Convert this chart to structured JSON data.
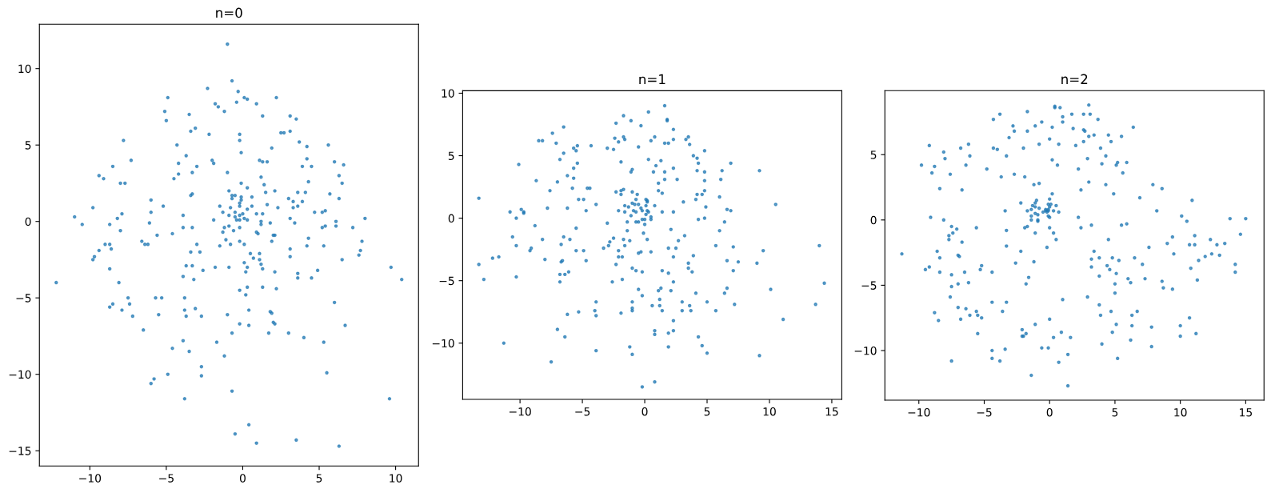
{
  "chart_data": [
    {
      "type": "scatter",
      "title": "n=0",
      "color": "#1f77b4",
      "marker": "circle",
      "x": [
        -1.0,
        -0.7,
        -2.3,
        -0.3,
        -4.9,
        0.1,
        0.3,
        2.2,
        -1.8,
        -0.4,
        0.9,
        -1.6,
        -1.2,
        -5.1,
        -5.0,
        -3.5,
        1.3,
        3.1,
        3.5,
        -3.1,
        -3.4,
        -2.2,
        -0.2,
        -0.2,
        2.5,
        2.7,
        3.1,
        -7.8,
        -4.3,
        3.7,
        4.2,
        5.6,
        1.9,
        -0.1,
        -3.7,
        -7.3,
        -2.0,
        1.1,
        1.3,
        1.6,
        4.2,
        6.0,
        6.6,
        -4.2,
        -1.9,
        -8.5,
        -3.0,
        3.9,
        4.5,
        -1.0,
        -3.3,
        -4.2,
        -9.4,
        -9.1,
        -4.5,
        1.2,
        6.3,
        -8.0,
        -7.7,
        -0.1,
        1.4,
        4.3,
        6.5,
        0.3,
        -0.9,
        1.5,
        2.1,
        3.6,
        4.1,
        5.7,
        -0.7,
        -0.5,
        -3.3,
        -3.4,
        -0.1,
        0.6,
        -0.7,
        -0.1,
        -6.0,
        3.0,
        3.3,
        3.9,
        6.3,
        -0.2,
        1.6,
        -1.5,
        -0.2,
        0.6,
        -5.2,
        3.6,
        2.3,
        -0.8,
        0.3,
        3.3,
        -9.8,
        -0.5,
        -1.3,
        -6.0,
        4.7,
        5.2,
        5.4,
        -7.9,
        -3.9,
        -0.9,
        0.0,
        0.9,
        1.3,
        -0.5,
        -0.2,
        0.1,
        -0.4,
        -0.2,
        0.3,
        -1.9,
        3.1,
        8.0,
        -11.0,
        -8.2,
        1.2,
        6.1,
        -10.5,
        -6.1,
        1.2,
        1.8,
        3.4,
        -8.7,
        5.4,
        6.1,
        5.2,
        7.2,
        -3.9,
        -3.3,
        -1.2,
        -0.9,
        -0.2,
        -8.0,
        -1.3,
        -0.6,
        0.9,
        1.0,
        -4.6,
        -5.6,
        2.0,
        2.1,
        -1.1,
        4.3,
        1.9,
        -0.2,
        7.8,
        -6.6,
        -9.0,
        -8.7,
        -6.4,
        -6.2,
        -3.0,
        -0.8,
        0.1,
        -1.5,
        4.2,
        5.3,
        3.1,
        -9.4,
        -8.6,
        7.7,
        -3.4,
        -2.8,
        0.5,
        1.1,
        7.6,
        -9.7,
        -9.8,
        0.7,
        3.1,
        1.1,
        6.5,
        0.1,
        1.2,
        -3.7,
        -3.3,
        -1.8,
        -0.9,
        0.3,
        9.7,
        -8.7,
        -2.6,
        1.3,
        4.9,
        0.2,
        2.1,
        3.6,
        -3.9,
        3.6,
        4.5,
        -3.2,
        10.4,
        -12.2,
        -8.1,
        1.3,
        0.3,
        2.2,
        -0.2,
        0.2,
        -7.5,
        -5.7,
        -5.3,
        -3.8,
        6.0,
        -8.5,
        -7.4,
        -8.7,
        -3.1,
        -7.9,
        -3.8,
        0.4,
        1.8,
        1.9,
        -1.0,
        -5.5,
        -7.2,
        -3.7,
        -2.7,
        2.0,
        2.1,
        -0.2,
        0.4,
        6.7,
        -6.5,
        -0.7,
        1.7,
        3.0,
        4.0,
        -3.9,
        -1.7,
        5.3,
        -4.6,
        -3.5,
        -1.2,
        -2.7,
        -4.9,
        -2.7,
        5.5,
        -5.8,
        -6.0,
        -0.7,
        -3.8,
        9.6,
        0.4,
        -0.5,
        0.9,
        3.5,
        6.3
      ],
      "values": [
        11.6,
        9.2,
        8.7,
        8.5,
        8.1,
        8.1,
        8.0,
        8.1,
        7.7,
        7.8,
        7.7,
        7.5,
        7.2,
        7.2,
        6.6,
        7.0,
        6.9,
        6.9,
        6.7,
        6.1,
        5.9,
        5.7,
        5.7,
        5.3,
        5.8,
        5.8,
        5.9,
        5.3,
        5.0,
        5.2,
        4.9,
        5.0,
        4.8,
        4.5,
        4.3,
        4.0,
        4.0,
        4.0,
        3.9,
        3.9,
        4.1,
        3.9,
        3.7,
        3.8,
        3.8,
        3.6,
        3.6,
        3.6,
        3.6,
        3.2,
        3.2,
        3.1,
        3.0,
        2.8,
        2.8,
        2.9,
        3.0,
        2.5,
        2.5,
        2.5,
        2.4,
        2.6,
        2.5,
        2.2,
        2.0,
        1.9,
        2.0,
        1.9,
        1.9,
        1.8,
        1.7,
        1.7,
        1.8,
        1.7,
        1.6,
        1.6,
        1.5,
        1.4,
        1.4,
        1.5,
        1.3,
        1.3,
        1.5,
        1.2,
        1.1,
        1.0,
        1.0,
        1.0,
        1.0,
        1.0,
        0.9,
        0.9,
        0.8,
        0.9,
        0.9,
        0.6,
        0.6,
        0.6,
        0.6,
        0.6,
        0.7,
        0.5,
        0.4,
        0.4,
        0.5,
        0.5,
        0.5,
        0.3,
        0.4,
        0.2,
        0.1,
        0.1,
        0.1,
        0.1,
        0.2,
        0.2,
        0.3,
        0.2,
        0.0,
        0.0,
        -0.2,
        -0.1,
        -0.2,
        -0.1,
        -0.1,
        -0.2,
        -0.3,
        -0.3,
        -0.4,
        -0.4,
        -0.4,
        -0.4,
        -0.4,
        -0.3,
        -0.4,
        -0.6,
        -0.7,
        -0.6,
        -0.7,
        -0.8,
        -0.8,
        -0.9,
        -0.9,
        -0.9,
        -1.2,
        -1.1,
        -1.3,
        -1.3,
        -1.3,
        -1.3,
        -1.5,
        -1.5,
        -1.5,
        -1.5,
        -1.5,
        -1.5,
        -1.5,
        -1.6,
        -1.6,
        -1.6,
        -1.8,
        -1.9,
        -1.8,
        -1.9,
        -2.0,
        -2.0,
        -2.1,
        -2.1,
        -2.2,
        -2.3,
        -2.5,
        -2.4,
        -2.3,
        -2.5,
        -2.5,
        -2.7,
        -2.8,
        -2.9,
        -2.9,
        -3.0,
        -3.0,
        -3.0,
        -3.0,
        -3.1,
        -3.2,
        -3.1,
        -3.2,
        -3.3,
        -3.3,
        -3.4,
        -3.6,
        -3.7,
        -3.7,
        -3.8,
        -3.8,
        -4.0,
        -4.0,
        -4.3,
        -4.3,
        -4.4,
        -4.5,
        -4.8,
        -5.0,
        -5.0,
        -5.0,
        -5.0,
        -5.3,
        -5.4,
        -5.4,
        -5.6,
        -5.7,
        -5.8,
        -5.8,
        -5.8,
        -5.9,
        -6.0,
        -6.1,
        -6.1,
        -6.2,
        -6.2,
        -6.2,
        -6.6,
        -6.7,
        -6.7,
        -6.8,
        -6.8,
        -7.1,
        -7.3,
        -7.3,
        -7.3,
        -7.6,
        -7.8,
        -7.9,
        -7.9,
        -8.3,
        -8.5,
        -8.8,
        -9.5,
        -10.0,
        -10.1,
        -9.9,
        -10.3,
        -10.6,
        -11.1,
        -11.6,
        -11.6,
        -13.3,
        -13.9,
        -14.5,
        -14.3,
        -14.7
      ],
      "xlim": [
        -13.3,
        11.5
      ],
      "ylim": [
        -16.0,
        12.9
      ],
      "xticks": [
        -10,
        -5,
        0,
        5,
        10
      ],
      "yticks": [
        -15,
        -10,
        -5,
        0,
        5,
        10
      ]
    },
    {
      "type": "scatter",
      "title": "n=1",
      "color": "#1f77b4",
      "marker": "circle",
      "x": [
        -13.3,
        -13.3,
        -12.9,
        -12.2,
        -11.7,
        -11.3,
        -10.8,
        -10.6,
        -10.3,
        -10.3,
        -10.3,
        -10.1,
        -9.9,
        -9.7,
        -9.7,
        -9.2,
        -9.1,
        -8.8,
        -8.7,
        -8.5,
        -8.2,
        -8.2,
        -8.0,
        -7.8,
        -7.6,
        -7.5,
        -7.4,
        -7.1,
        -7.0,
        -7.0,
        -6.8,
        -6.8,
        -6.8,
        -6.7,
        -6.7,
        -6.6,
        -6.5,
        -6.5,
        -6.5,
        -6.4,
        -6.4,
        -6.2,
        -6.2,
        -6.2,
        -6.1,
        -6.0,
        -5.8,
        -5.7,
        -5.7,
        -5.7,
        -5.5,
        -5.5,
        -5.5,
        -5.4,
        -5.4,
        -5.3,
        -5.3,
        -4.9,
        -4.9,
        -4.7,
        -4.7,
        -4.6,
        -4.4,
        -4.3,
        -4.0,
        -3.9,
        -3.9,
        -3.9,
        -3.9,
        -3.3,
        -3.0,
        -3.0,
        -2.9,
        -2.8,
        -2.6,
        -2.5,
        -2.5,
        -2.4,
        -2.3,
        -2.3,
        -2.3,
        -2.1,
        -2.1,
        -2.1,
        -2.1,
        -1.9,
        -1.9,
        -1.9,
        -1.9,
        -1.8,
        -1.8,
        -1.7,
        -1.7,
        -1.7,
        -1.7,
        -1.6,
        -1.6,
        -1.6,
        -1.6,
        -1.4,
        -1.4,
        -1.3,
        -1.2,
        -1.2,
        -1.1,
        -1.1,
        -1.1,
        -1.0,
        -1.0,
        -1.0,
        -1.0,
        -1.0,
        -1.0,
        -1.0,
        -1.0,
        -0.9,
        -0.8,
        -0.7,
        -0.7,
        -0.7,
        -0.7,
        -0.6,
        -0.5,
        -0.5,
        -0.5,
        -0.5,
        -0.5,
        1.6,
        0.3,
        1.8,
        1.8,
        -0.3,
        2.3,
        0.5,
        0.8,
        2.3,
        3.3,
        3.5,
        1.6,
        1.9,
        3.6,
        4.8,
        3.9,
        4.2,
        0.3,
        1.3,
        4.3,
        6.9,
        0.9,
        2.3,
        6.2,
        9.2,
        4.2,
        4.8,
        0.7,
        1.6,
        1.1,
        1.6,
        2.6,
        6.1,
        4.8,
        1.1,
        1.4,
        4.8,
        4.6,
        4.2,
        6.0,
        4.1,
        0.1,
        0.2,
        0.2,
        3.1,
        10.5,
        0.1,
        0.8,
        4.9,
        -0.3,
        -0.2,
        0.3,
        0.2,
        1.4,
        2.3,
        6.6,
        6.9,
        0.1,
        0.5,
        0.5,
        -0.2,
        0.0,
        4.3,
        4.8,
        6.4,
        0.0,
        2.1,
        6.0,
        -0.1,
        3.2,
        2.7,
        0.2,
        5.7,
        7.1,
        14.0,
        1.9,
        2.5,
        9.5,
        -0.3,
        0.5,
        3.9,
        2.3,
        3.5,
        3.5,
        3.8,
        6.6,
        7.5,
        9.0,
        7.1,
        1.4,
        -0.2,
        1.9,
        2.3,
        14.4,
        1.1,
        1.3,
        2.1,
        -0.2,
        4.1,
        6.6,
        6.4,
        10.1,
        1.2,
        0.6,
        1.2,
        1.4,
        3.0,
        3.6,
        3.0,
        3.7,
        5.0,
        5.7,
        7.2,
        13.7,
        11.1,
        2.3,
        0.8,
        0.8,
        2.3,
        1.9,
        4.3,
        4.6,
        1.9,
        5.0,
        9.2,
        0.8,
        -0.2
      ],
      "values": [
        1.6,
        -3.7,
        -4.9,
        -3.2,
        -3.1,
        -10.0,
        0.5,
        -1.5,
        -2.2,
        -4.7,
        0.0,
        4.3,
        0.7,
        0.5,
        0.4,
        -2.6,
        -2.4,
        -0.6,
        3.0,
        6.2,
        6.2,
        -1.7,
        -3.3,
        0.8,
        2.2,
        -11.5,
        6.8,
        6.0,
        2.9,
        -8.9,
        4.7,
        -4.5,
        -5.1,
        -3.5,
        -2.1,
        -3.4,
        5.2,
        7.3,
        -1.5,
        -4.5,
        -9.5,
        3.4,
        0.8,
        -7.7,
        -4.3,
        -1.7,
        2.4,
        4.0,
        3.2,
        5.6,
        5.4,
        -0.8,
        -2.6,
        5.8,
        4.4,
        1.5,
        -7.5,
        1.5,
        -2.6,
        0.6,
        -3.4,
        2.4,
        2.4,
        5.8,
        -7.4,
        -6.7,
        -7.8,
        -10.6,
        1.1,
        -2.4,
        5.6,
        -0.4,
        -2.2,
        -1.9,
        -5.1,
        5.5,
        -1.6,
        6.4,
        7.6,
        2.1,
        -3.7,
        6.1,
        -2.6,
        0.6,
        -3.1,
        4.5,
        2.2,
        1.9,
        -7.6,
        -3.1,
        -4.9,
        8.2,
        6.5,
        2.3,
        -1.7,
        0.5,
        6.3,
        1.0,
        -2.2,
        -1.0,
        -0.3,
        0.9,
        -10.3,
        -1.8,
        7.8,
        3.7,
        0.2,
        3.9,
        2.1,
        1.2,
        -4.0,
        -6.7,
        -7.2,
        -7.4,
        -10.9,
        0.6,
        1.1,
        0.5,
        -0.3,
        -4.2,
        1.5,
        1.9,
        5.7,
        -0.3,
        -2.8,
        -5.7,
        1.1,
        9.0,
        8.5,
        7.9,
        7.8,
        7.4,
        7.1,
        6.2,
        6.5,
        6.3,
        6.3,
        6.5,
        6.0,
        6.0,
        5.9,
        5.4,
        5.0,
        4.8,
        4.7,
        4.6,
        4.4,
        4.4,
        4.2,
        4.0,
        3.8,
        3.8,
        3.8,
        3.7,
        3.7,
        3.7,
        2.8,
        3.1,
        3.1,
        3.1,
        3.0,
        2.2,
        2.0,
        2.2,
        1.9,
        1.9,
        1.7,
        1.5,
        1.5,
        1.4,
        1.3,
        1.3,
        1.1,
        1.0,
        1.0,
        0.9,
        0.8,
        0.6,
        0.5,
        0.6,
        0.5,
        0.5,
        0.7,
        0.6,
        0.3,
        0.1,
        -0.1,
        -0.1,
        -0.1,
        -0.1,
        0.0,
        -0.3,
        -0.5,
        -0.9,
        -1.0,
        -1.2,
        -1.4,
        -1.8,
        -1.7,
        -2.2,
        -2.3,
        -2.2,
        -2.4,
        -2.4,
        -2.6,
        -2.7,
        -2.7,
        -3.0,
        -3.1,
        -3.6,
        -4.0,
        -4.3,
        -3.4,
        -3.5,
        -3.6,
        -4.2,
        -4.2,
        -4.3,
        -4.4,
        -5.1,
        -5.2,
        -5.8,
        -5.6,
        -5.8,
        -6.2,
        -6.0,
        -5.6,
        -6.0,
        -5.7,
        -6.5,
        -7.0,
        -7.0,
        -7.4,
        -6.7,
        -7.0,
        -7.4,
        -7.4,
        -6.7,
        -7.4,
        -6.9,
        -6.9,
        -8.1,
        -8.2,
        -9.0,
        -9.3,
        -9.0,
        -9.2,
        -9.5,
        -10.2,
        -10.3,
        -10.8,
        -11.0,
        -13.1,
        -13.5
      ],
      "xlim": [
        -14.6,
        15.8
      ],
      "ylim": [
        -14.5,
        10.2
      ],
      "xticks": [
        -10,
        -5,
        0,
        5,
        10,
        15
      ],
      "yticks": [
        -10,
        -5,
        0,
        5,
        10
      ]
    },
    {
      "type": "scatter",
      "title": "n=2",
      "color": "#1f77b4",
      "marker": "circle",
      "x": [
        -11.3,
        -9.8,
        -9.5,
        -9.2,
        -9.2,
        -9.1,
        -9.0,
        -8.8,
        -8.8,
        -8.6,
        -8.5,
        -8.4,
        -8.4,
        -8.4,
        -8.1,
        -8.1,
        -8.0,
        -7.7,
        -7.7,
        -7.6,
        -7.6,
        -7.5,
        -7.5,
        -7.5,
        -7.5,
        -7.4,
        -7.1,
        -7.0,
        -7.0,
        -7.0,
        -6.9,
        -6.8,
        -6.8,
        -6.7,
        -6.7,
        -6.5,
        -6.4,
        -6.4,
        -6.2,
        -6.2,
        -6.1,
        -6.1,
        -5.6,
        -5.6,
        -5.5,
        -5.5,
        -5.3,
        -5.2,
        -5.2,
        -4.8,
        -4.4,
        -4.4,
        -4.4,
        -4.4,
        -4.3,
        -4.3,
        -4.0,
        -3.8,
        -3.7,
        -3.8,
        -3.6,
        -3.4,
        -3.3,
        -3.3,
        -3.3,
        -3.4,
        -3.3,
        -3.1,
        -2.8,
        -2.7,
        -2.7,
        -2.6,
        -2.2,
        -2.2,
        -2.1,
        -2.1,
        -2.0,
        -2.0,
        -1.9,
        -1.9,
        -1.8,
        -1.8,
        -1.7,
        -1.7,
        -1.7,
        -1.7,
        -1.6,
        -1.4,
        -1.4,
        -1.4,
        -1.3,
        -1.4,
        -1.2,
        -1.2,
        -1.1,
        -1.1,
        -1.1,
        -1.0,
        -1.1,
        -1.1,
        -1.1,
        -0.9,
        -0.9,
        -0.9,
        -0.8,
        -0.8,
        -0.8,
        -0.6,
        -0.6,
        -0.5,
        -0.3,
        -0.3,
        -0.2,
        -0.1,
        -0.1,
        -0.1,
        0.0,
        -0.2,
        -0.1,
        0.0,
        0.0,
        -0.1,
        0.0,
        0.0,
        0.0,
        0.1,
        0.2,
        0.2,
        0.2,
        0.3,
        0.3,
        0.3,
        0.4,
        0.4,
        0.5,
        0.5,
        0.6,
        0.7,
        0.7,
        0.7,
        0.8,
        0.9,
        1.0,
        1.0,
        1.0,
        1.4,
        1.4,
        1.6,
        1.7,
        3.0,
        2.6,
        3.1,
        3.7,
        1.8,
        2.6,
        2.7,
        3.0,
        3.4,
        4.5,
        4.7,
        5.5,
        6.4,
        2.6,
        2.0,
        3.9,
        4.3,
        2.9,
        4.0,
        5.1,
        5.2,
        5.9,
        5.6,
        2.2,
        3.0,
        4.3,
        2.4,
        4.9,
        6.9,
        7.9,
        8.6,
        10.9,
        8.2,
        2.2,
        2.4,
        3.2,
        5.5,
        5.9,
        10.1,
        10.5,
        13.8,
        15.0,
        14.6,
        4.5,
        9.4,
        11.1,
        9.0,
        10.7,
        11.1,
        12.3,
        12.8,
        13.4,
        7.6,
        3.4,
        9.5,
        12.4,
        13.0,
        11.9,
        11.4,
        3.2,
        3.8,
        4.8,
        5.3,
        6.5,
        3.2,
        4.4,
        4.6,
        5.1,
        7.1,
        10.8,
        14.2,
        14.2,
        3.8,
        6.0,
        6.2,
        7.3,
        5.0,
        8.6,
        8.7,
        9.4,
        11.3,
        5.0,
        2.9,
        3.8,
        3.9,
        4.7,
        6.7,
        6.3,
        5.1,
        6.3,
        7.8,
        4.8,
        10.0,
        10.7,
        10.0,
        11.2,
        4.0,
        6.2,
        7.8,
        5.2
      ],
      "values": [
        -2.6,
        4.2,
        -3.8,
        5.7,
        -3.6,
        0.2,
        3.6,
        4.1,
        -7.1,
        -2.4,
        -7.7,
        -2.9,
        2.4,
        -4.0,
        0.0,
        5.2,
        4.7,
        -1.2,
        -1.5,
        3.5,
        -5.9,
        -0.5,
        -4.2,
        -5.1,
        -10.8,
        -1.0,
        -0.7,
        -4.9,
        -6.7,
        -2.7,
        -2.8,
        5.5,
        -7.6,
        2.3,
        -1.7,
        -4.0,
        4.2,
        -6.8,
        5.8,
        -4.8,
        4.9,
        -7.3,
        -0.6,
        -7.0,
        -7.3,
        -8.7,
        -3.8,
        -3.5,
        -7.5,
        3.9,
        -4.0,
        -6.3,
        -10.0,
        -10.6,
        7.7,
        5.5,
        5.4,
        8.1,
        3.3,
        -10.8,
        -7.0,
        0.7,
        4.9,
        -2.0,
        -6.3,
        -9.9,
        -0.8,
        6.3,
        7.2,
        6.8,
        3.5,
        -3.3,
        -2.4,
        1.3,
        -8.4,
        -8.9,
        5.5,
        -8.9,
        3.3,
        -0.6,
        -8.7,
        -4.9,
        -0.5,
        0.7,
        8.3,
        6.8,
        -4.4,
        0.8,
        -11.9,
        0.3,
        1.1,
        0.0,
        2.7,
        -3.2,
        0.5,
        1.3,
        1.0,
        1.5,
        -1.0,
        7.2,
        -8.0,
        0.4,
        0.0,
        -0.1,
        5.8,
        2.8,
        0.9,
        7.5,
        -9.8,
        0.6,
        0.7,
        0.8,
        0.6,
        0.8,
        0.7,
        1.2,
        1.6,
        -2.1,
        0.3,
        -0.6,
        -7.6,
        -9.8,
        6.2,
        1.0,
        0.2,
        1.2,
        4.6,
        2.0,
        7.1,
        0.7,
        -1.0,
        -9.0,
        8.7,
        8.6,
        1.1,
        -1.5,
        4.2,
        0.6,
        5.8,
        -10.9,
        8.6,
        -8.6,
        7.9,
        7.5,
        -6.1,
        -12.7,
        -10.3,
        -9.0,
        8.1,
        8.8,
        8.1,
        8.1,
        7.7,
        7.0,
        6.9,
        6.8,
        6.4,
        6.5,
        6.5,
        6.0,
        6.4,
        7.1,
        6.0,
        5.7,
        5.5,
        4.9,
        4.7,
        4.3,
        4.2,
        4.4,
        4.4,
        3.6,
        3.9,
        2.9,
        2.7,
        2.3,
        2.0,
        1.7,
        2.7,
        2.4,
        1.5,
        0.7,
        0.2,
        -0.6,
        -0.4,
        -0.4,
        -0.3,
        0.3,
        -0.1,
        0.1,
        0.1,
        -1.1,
        -1.5,
        -1.3,
        -1.2,
        -1.8,
        -1.9,
        -1.9,
        -1.5,
        -1.9,
        -1.8,
        -2.1,
        -2.4,
        -2.6,
        -2.6,
        -2.7,
        -2.8,
        -3.1,
        -3.0,
        -2.9,
        -2.9,
        -3.1,
        -2.9,
        -3.6,
        -3.5,
        -3.8,
        -4.1,
        -3.4,
        -3.7,
        -3.4,
        -4.0,
        -4.3,
        -4.5,
        -4.8,
        -4.5,
        -4.9,
        -4.7,
        -5.2,
        -5.3,
        -4.6,
        -5.6,
        -5.9,
        -6.5,
        -7.3,
        -7.0,
        -7.0,
        -7.3,
        -8.0,
        -8.1,
        -8.2,
        -8.6,
        -8.1,
        -7.5,
        -8.9,
        -8.7,
        -9.5,
        -9.2,
        -9.7,
        -10.6
      ],
      "xlim": [
        -12.6,
        16.4
      ],
      "ylim": [
        -13.8,
        9.9
      ],
      "xticks": [
        -10,
        -5,
        0,
        5,
        10,
        15
      ],
      "yticks": [
        -10,
        -5,
        0,
        5
      ]
    }
  ]
}
